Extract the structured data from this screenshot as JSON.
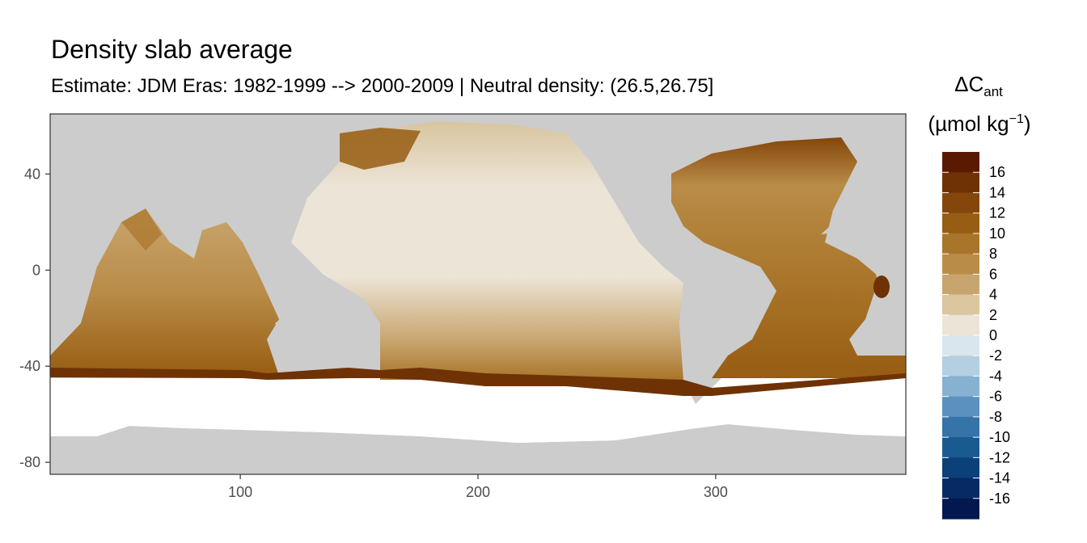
{
  "chart_data": {
    "type": "heatmap",
    "title": "Density slab average",
    "subtitle": "Estimate: JDM Eras: 1982-1999 --> 2000-2009 | Neutral density: (26.5,26.75]",
    "xlabel": "",
    "ylabel": "",
    "xlim": [
      20,
      380
    ],
    "ylim": [
      -85,
      65
    ],
    "x_ticks": [
      100,
      200,
      300
    ],
    "y_ticks": [
      40,
      0,
      -40,
      -80
    ],
    "grid": true,
    "legend": {
      "placement": "right",
      "title": "ΔC",
      "title_subscript": "ant",
      "units": "(µmol kg",
      "units_superscript": "−1",
      "units_close": ")",
      "labels": [
        "16",
        "14",
        "12",
        "10",
        "8",
        "6",
        "4",
        "2",
        "0",
        "-2",
        "-4",
        "-6",
        "-8",
        "-10",
        "-12",
        "-14",
        "-16"
      ],
      "colors": [
        "#5a1a02",
        "#6e3205",
        "#84460a",
        "#975d12",
        "#a9752a",
        "#b98c48",
        "#c8a56e",
        "#dcc6a0",
        "#ece4d6",
        "#d9e6ee",
        "#b3cfe1",
        "#86b1d0",
        "#5a91bf",
        "#3573a8",
        "#195a90",
        "#0b4078",
        "#062a63",
        "#031750"
      ]
    },
    "land_color": "#cccccc",
    "nodata_color": "#ffffff",
    "values_note_band": "ΔCant roughly: Pacific 0-4, Indian/Atlantic 6-12, Southern Ocean edge 14-18"
  }
}
